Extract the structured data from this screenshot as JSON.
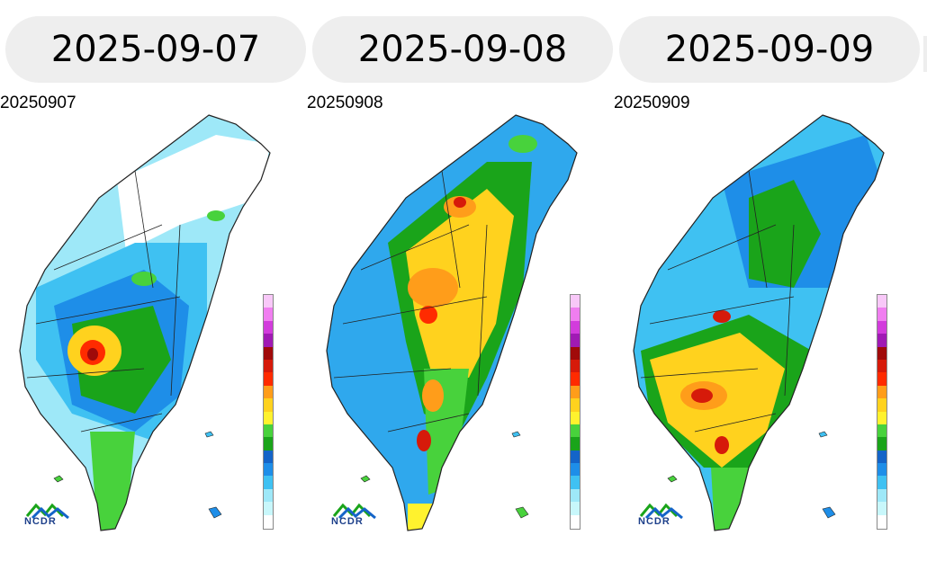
{
  "panels": [
    {
      "date": "2025-09-07",
      "map_label": "20250907"
    },
    {
      "date": "2025-09-08",
      "map_label": "20250908"
    },
    {
      "date": "2025-09-09",
      "map_label": "20250909"
    }
  ],
  "logo_text": "NCDR",
  "legend_colors": [
    "#ffffff",
    "#c8f7fb",
    "#9ee8f8",
    "#3fc1f2",
    "#1e8ee8",
    "#1464c8",
    "#1aa41a",
    "#48d23c",
    "#fff22e",
    "#ffd21e",
    "#ff9d1a",
    "#ff2b00",
    "#d61a0a",
    "#a00a0a",
    "#a01ab4",
    "#d23cdc",
    "#f07ef0",
    "#f8c8f8"
  ],
  "colors": {
    "pill_bg": "#eeeeee",
    "border": "#222222"
  }
}
